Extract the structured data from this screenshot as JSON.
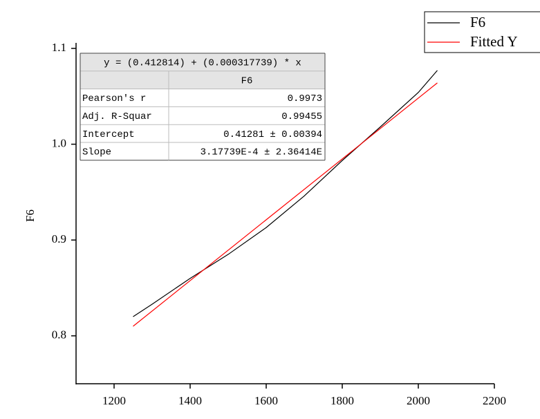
{
  "chart_data": {
    "type": "line",
    "y_label": "F6",
    "series": [
      {
        "name": "F6",
        "color": "#000000",
        "x": [
          1250,
          1300,
          1400,
          1500,
          1600,
          1700,
          1800,
          1900,
          2000,
          2050
        ],
        "values": [
          0.82,
          0.833,
          0.86,
          0.885,
          0.913,
          0.946,
          0.983,
          1.018,
          1.054,
          1.077
        ]
      },
      {
        "name": "Fitted Y",
        "color": "#ff0000",
        "x": [
          1250,
          2050
        ],
        "values": [
          0.81,
          1.064
        ]
      }
    ],
    "xlim": [
      1100,
      2200
    ],
    "xticks": [
      1200,
      1400,
      1600,
      1800,
      2000,
      2200
    ],
    "ylim": [
      0.75,
      1.1
    ],
    "yticks": [
      0.8,
      0.9,
      {
        "value": 1,
        "label": "1.0"
      },
      1.1
    ],
    "fit_table": {
      "equation": "y = (0.412814) + (0.000317739) * x",
      "header": "F6",
      "rows": [
        [
          "Pearson's r",
          "0.9973"
        ],
        [
          "Adj. R-Squar",
          "0.99455"
        ],
        [
          "Intercept",
          "0.41281 ± 0.00394"
        ],
        [
          "Slope",
          "3.17739E-4 ± 2.36414E"
        ]
      ]
    }
  }
}
